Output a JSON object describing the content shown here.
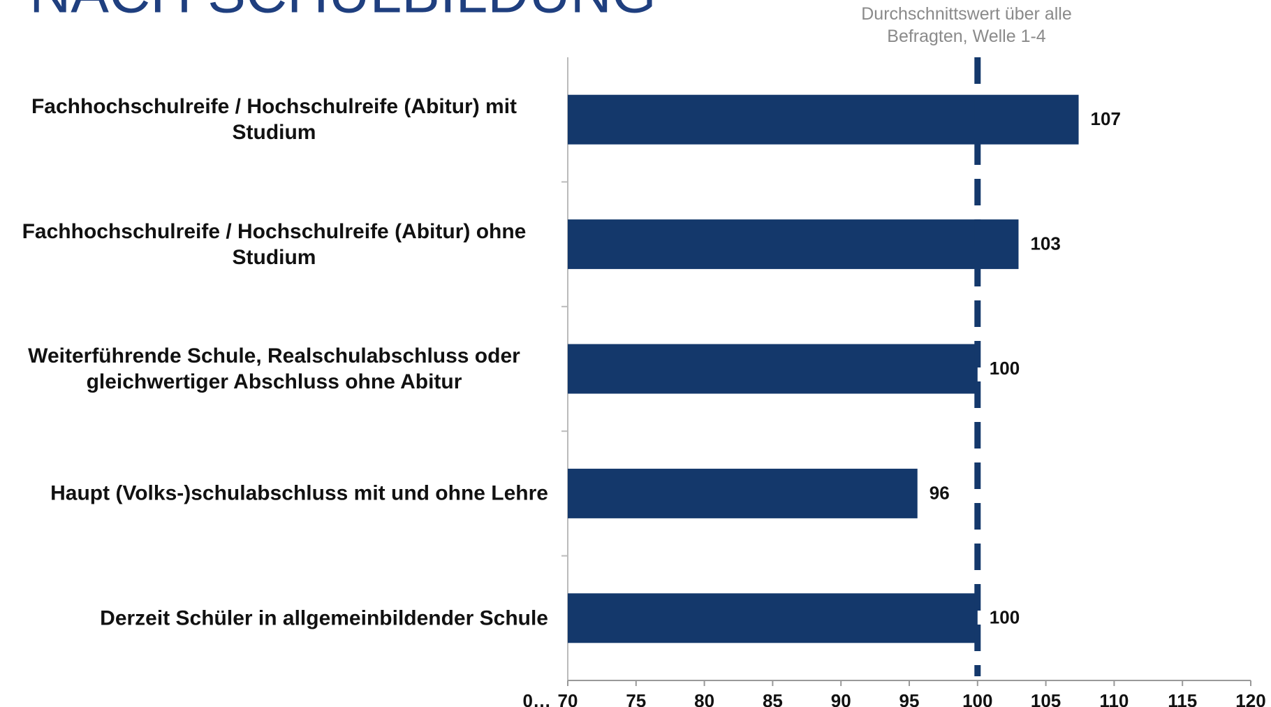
{
  "chart_data": {
    "type": "bar",
    "orientation": "horizontal",
    "title": "- NACH SCHULBILDUNG",
    "categories": [
      "Fachhochschulreife / Hochschulreife (Abitur) mit Studium",
      "Fachhochschulreife / Hochschulreife (Abitur) ohne Studium",
      "Weiterführende Schule, Realschulabschluss oder gleichwertiger Abschluss ohne Abitur",
      "Haupt (Volks-)schulabschluss mit und ohne Lehre",
      "Derzeit Schüler in allgemeinbildender Schule"
    ],
    "values": [
      107.4,
      103,
      100,
      95.6,
      100
    ],
    "value_labels": [
      "107",
      "103",
      "100",
      "96",
      "100"
    ],
    "color": "#14386b",
    "xlim": [
      70,
      120
    ],
    "xticks": [
      70,
      75,
      80,
      85,
      90,
      95,
      100,
      105,
      110,
      115,
      120
    ],
    "axis_break_label": "0…",
    "reference_line": {
      "value": 100,
      "label": "Durchschnittswert über alle Befragten, Welle 1-4",
      "color": "#14386b"
    }
  }
}
